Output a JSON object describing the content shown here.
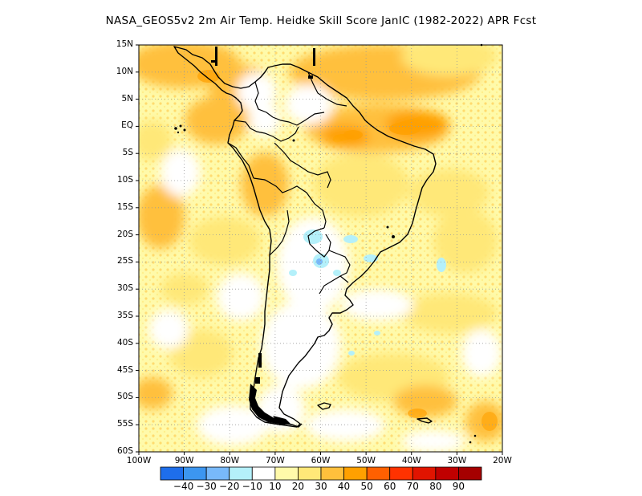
{
  "title": "NASA_GEOS5v2  2m Air Temp. Heidke Skill Score JanIC (1982-2022) APR Fcst",
  "map": {
    "lat_labels": [
      "15N",
      "10N",
      "5N",
      "EQ",
      "5S",
      "10S",
      "15S",
      "20S",
      "25S",
      "30S",
      "35S",
      "40S",
      "45S",
      "50S",
      "55S",
      "60S"
    ],
    "lon_labels": [
      "100W",
      "90W",
      "80W",
      "70W",
      "60W",
      "50W",
      "40W",
      "30W",
      "20W"
    ],
    "lon_range": [
      -100,
      -20
    ],
    "lat_range": [
      -60,
      15
    ],
    "grid": "dotted"
  },
  "colorbar": {
    "labels": [
      "-40",
      "-30",
      "-20",
      "-10",
      "10",
      "20",
      "30",
      "40",
      "50",
      "60",
      "70",
      "80",
      "90"
    ],
    "colors": [
      "#1e6eeb",
      "#3c96f0",
      "#78b9fa",
      "#b4f0fa",
      "#ffffff",
      "#fffaaa",
      "#ffe878",
      "#ffc03c",
      "#ffa000",
      "#ff6000",
      "#ff3200",
      "#e11400",
      "#c00000",
      "#a50000"
    ]
  }
}
